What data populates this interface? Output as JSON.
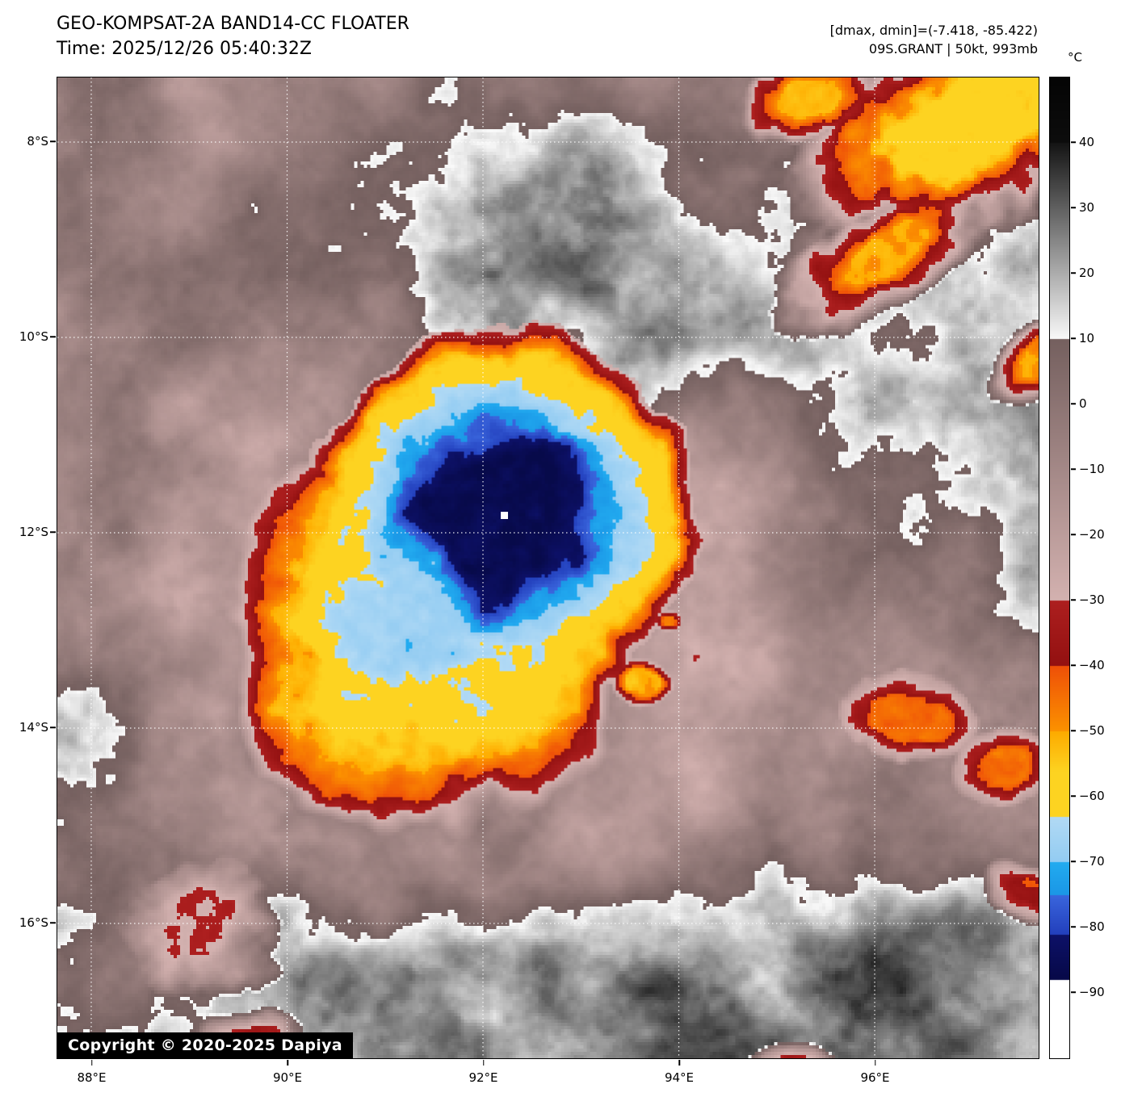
{
  "header": {
    "title": "GEO-KOMPSAT-2A BAND14-CC FLOATER",
    "time": "Time: 2025/12/26 05:40:32Z",
    "dmax_dmin": "[dmax, dmin]=(-7.418, -85.422)",
    "storm_info": "09S.GRANT | 50kt, 993mb"
  },
  "colorbar": {
    "unit": "°C",
    "range_top_c": 50,
    "range_bottom_c": -100,
    "tick_labels": [
      "40",
      "30",
      "20",
      "10",
      "0",
      "−10",
      "−20",
      "−30",
      "−40",
      "−50",
      "−60",
      "−70",
      "−80",
      "−90"
    ],
    "tick_values": [
      40,
      30,
      20,
      10,
      0,
      -10,
      -20,
      -30,
      -40,
      -50,
      -60,
      -70,
      -80,
      -90
    ],
    "palette_segments": [
      {
        "t_hi": 50,
        "t_lo": 40,
        "c_hi": "#050505",
        "c_lo": "#0d0d0d"
      },
      {
        "t_hi": 40,
        "t_lo": 10,
        "c_hi": "#151515",
        "c_lo": "#fafafa"
      },
      {
        "t_hi": 10,
        "t_lo": -30,
        "c_hi": "#75605f",
        "c_lo": "#d4b2b0"
      },
      {
        "t_hi": -30,
        "t_lo": -40,
        "c_hi": "#ad1f1f",
        "c_lo": "#931111"
      },
      {
        "t_hi": -40,
        "t_lo": -50,
        "c_hi": "#ef5108",
        "c_lo": "#fc9300"
      },
      {
        "t_hi": -50,
        "t_lo": -56,
        "c_hi": "#feab00",
        "c_lo": "#fdd321"
      },
      {
        "t_hi": -56,
        "t_lo": -63,
        "c_hi": "#fdd321",
        "c_lo": "#fdd321"
      },
      {
        "t_hi": -63,
        "t_lo": -70,
        "c_hi": "#b2daf5",
        "c_lo": "#93ccf2"
      },
      {
        "t_hi": -70,
        "t_lo": -75,
        "c_hi": "#22abf0",
        "c_lo": "#1b97e6"
      },
      {
        "t_hi": -75,
        "t_lo": -81,
        "c_hi": "#3a66dd",
        "c_lo": "#2340bd"
      },
      {
        "t_hi": -81,
        "t_lo": -88,
        "c_hi": "#0d1168",
        "c_lo": "#070948"
      },
      {
        "t_hi": -88,
        "t_lo": -100,
        "c_hi": "#ffffff",
        "c_lo": "#ffffff"
      }
    ]
  },
  "map": {
    "lat_ticks": [
      {
        "label": "8°S",
        "value": -8
      },
      {
        "label": "10°S",
        "value": -10
      },
      {
        "label": "12°S",
        "value": -12
      },
      {
        "label": "14°S",
        "value": -14
      },
      {
        "label": "16°S",
        "value": -16
      }
    ],
    "lon_ticks": [
      {
        "label": "88°E",
        "value": 88
      },
      {
        "label": "90°E",
        "value": 90
      },
      {
        "label": "92°E",
        "value": 92
      },
      {
        "label": "94°E",
        "value": 94
      },
      {
        "label": "96°E",
        "value": 96
      }
    ],
    "gridline_color": "#ffffff",
    "marker_color": "#ffffff",
    "copyright": "Copyright © 2020-2025 Dapiya"
  }
}
